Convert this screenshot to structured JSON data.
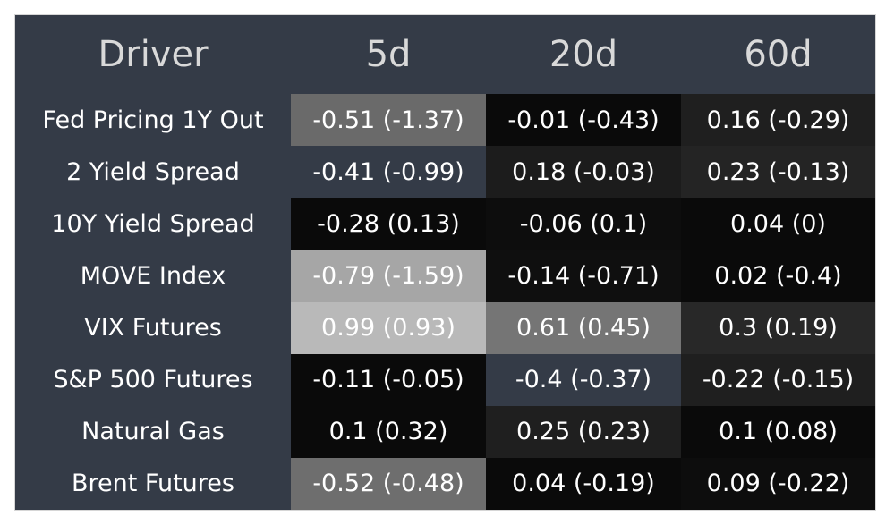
{
  "chart_data": {
    "type": "table",
    "columns": [
      "Driver",
      "5d",
      "20d",
      "60d"
    ],
    "rows": [
      {
        "driver": "Fed Pricing 1Y Out",
        "cells": [
          {
            "text": "-0.51 (-1.37)",
            "value": -0.51,
            "bg": "#6a6a6a"
          },
          {
            "text": "-0.01 (-0.43)",
            "value": -0.01,
            "bg": "#0a0a0a"
          },
          {
            "text": "0.16 (-0.29)",
            "value": 0.16,
            "bg": "#1f1f1f"
          }
        ]
      },
      {
        "driver": "2 Yield Spread",
        "cells": [
          {
            "text": "-0.41 (-0.99)",
            "value": -0.41,
            "bg": "#343b47"
          },
          {
            "text": "0.18 (-0.03)",
            "value": 0.18,
            "bg": "#1c1c1c"
          },
          {
            "text": "0.23 (-0.13)",
            "value": 0.23,
            "bg": "#242424"
          }
        ]
      },
      {
        "driver": "10Y Yield Spread",
        "cells": [
          {
            "text": "-0.28 (0.13)",
            "value": -0.28,
            "bg": "#0a0a0a"
          },
          {
            "text": "-0.06 (0.1)",
            "value": -0.06,
            "bg": "#0d0d0d"
          },
          {
            "text": "0.04 (0)",
            "value": 0.04,
            "bg": "#0a0a0a"
          }
        ]
      },
      {
        "driver": "MOVE Index",
        "cells": [
          {
            "text": "-0.79 (-1.59)",
            "value": -0.79,
            "bg": "#a6a6a6"
          },
          {
            "text": "-0.14 (-0.71)",
            "value": -0.14,
            "bg": "#0f0f0f"
          },
          {
            "text": "0.02 (-0.4)",
            "value": 0.02,
            "bg": "#0a0a0a"
          }
        ]
      },
      {
        "driver": "VIX Futures",
        "cells": [
          {
            "text": "0.99 (0.93)",
            "value": 0.99,
            "bg": "#b9b9b9"
          },
          {
            "text": "0.61 (0.45)",
            "value": 0.61,
            "bg": "#757575"
          },
          {
            "text": "0.3 (0.19)",
            "value": 0.3,
            "bg": "#282828"
          }
        ]
      },
      {
        "driver": "S&P 500 Futures",
        "cells": [
          {
            "text": "-0.11 (-0.05)",
            "value": -0.11,
            "bg": "#0a0a0a"
          },
          {
            "text": "-0.4 (-0.37)",
            "value": -0.4,
            "bg": "#343b47"
          },
          {
            "text": "-0.22 (-0.15)",
            "value": -0.22,
            "bg": "#1f1f1f"
          }
        ]
      },
      {
        "driver": "Natural Gas",
        "cells": [
          {
            "text": "0.1 (0.32)",
            "value": 0.1,
            "bg": "#0a0a0a"
          },
          {
            "text": "0.25 (0.23)",
            "value": 0.25,
            "bg": "#1f1f1f"
          },
          {
            "text": "0.1 (0.08)",
            "value": 0.1,
            "bg": "#0a0a0a"
          }
        ]
      },
      {
        "driver": "Brent Futures",
        "cells": [
          {
            "text": "-0.52 (-0.48)",
            "value": -0.52,
            "bg": "#6e6e6e"
          },
          {
            "text": "0.04 (-0.19)",
            "value": 0.04,
            "bg": "#0a0a0a"
          },
          {
            "text": "0.09 (-0.22)",
            "value": 0.09,
            "bg": "#0d0d0d"
          }
        ]
      }
    ]
  }
}
